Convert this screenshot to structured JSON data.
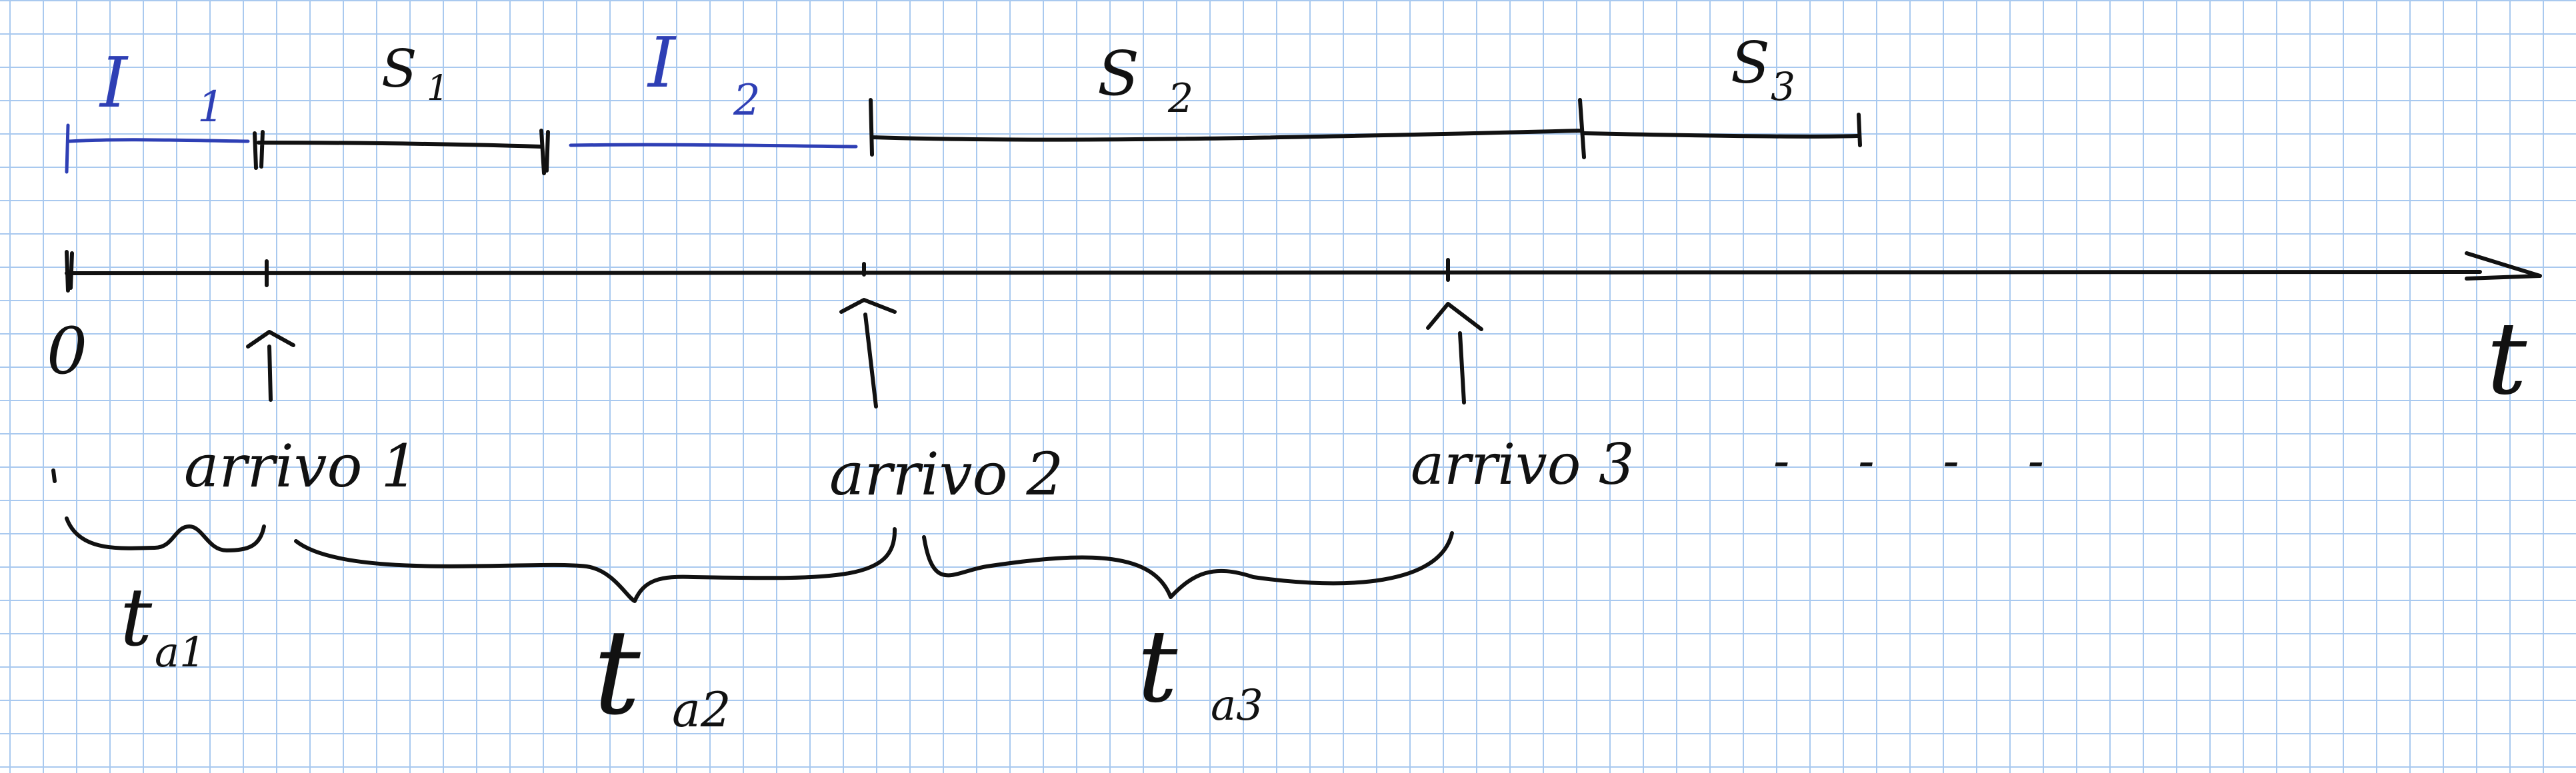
{
  "axis": {
    "origin_label": "0",
    "variable_label": "t"
  },
  "arrivals": [
    {
      "label": "arrivo 1"
    },
    {
      "label": "arrivo 2"
    },
    {
      "label": "arrivo 3"
    }
  ],
  "continuation_label": "- - - -",
  "service_intervals": [
    {
      "label": "S",
      "subscript": "1"
    },
    {
      "label": "S",
      "subscript": "2"
    },
    {
      "label": "S",
      "subscript": "3"
    }
  ],
  "idle_intervals": [
    {
      "label": "I",
      "subscript": "1"
    },
    {
      "label": "I",
      "subscript": "2"
    }
  ],
  "interarrival_times": [
    {
      "label": "t",
      "subscript": "a1"
    },
    {
      "label": "t",
      "subscript": "a2"
    },
    {
      "label": "t",
      "subscript": "a3"
    }
  ],
  "colors": {
    "paper": "#ffffff",
    "grid": "#a9c9ef",
    "ink": "#111111",
    "blue_ink": "#2e3fb5"
  }
}
